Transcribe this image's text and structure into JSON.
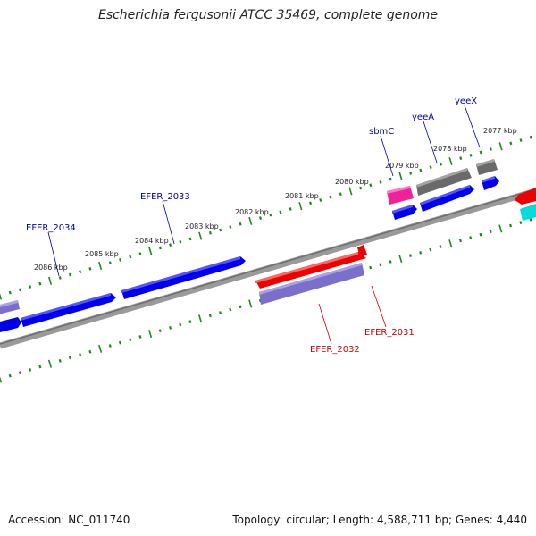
{
  "title": "Escherichia fergusonii ATCC 35469, complete genome",
  "colors": {
    "backbone": "#888888",
    "ticks": "#1a8a1a",
    "gene_blue": "#0000ee",
    "gene_red": "#ee0000",
    "gene_purple": "#7a70cc",
    "gene_gray": "#7a7a7a",
    "gene_pink": "#ee2299",
    "gene_cyan": "#00dddd",
    "label_upper": "#0000aa",
    "label_lower": "#cc0000"
  },
  "kbp_labels": [
    "2077 kbp",
    "2078 kbp",
    "2079 kbp",
    "2080 kbp",
    "2081 kbp",
    "2082 kbp",
    "2083 kbp",
    "2084 kbp",
    "2085 kbp",
    "2086 kbp"
  ],
  "gene_labels": {
    "yeeX": "yeeX",
    "yeeA": "yeeA",
    "sbmC": "sbmC",
    "EFER_2033": "EFER_2033",
    "EFER_2034": "EFER_2034",
    "EFER_2032": "EFER_2032",
    "EFER_2031": "EFER_2031"
  },
  "footer": {
    "accession": "Accession: NC_011740",
    "topology": "Topology: circular; Length: 4,588,711 bp; Genes: 4,440"
  }
}
